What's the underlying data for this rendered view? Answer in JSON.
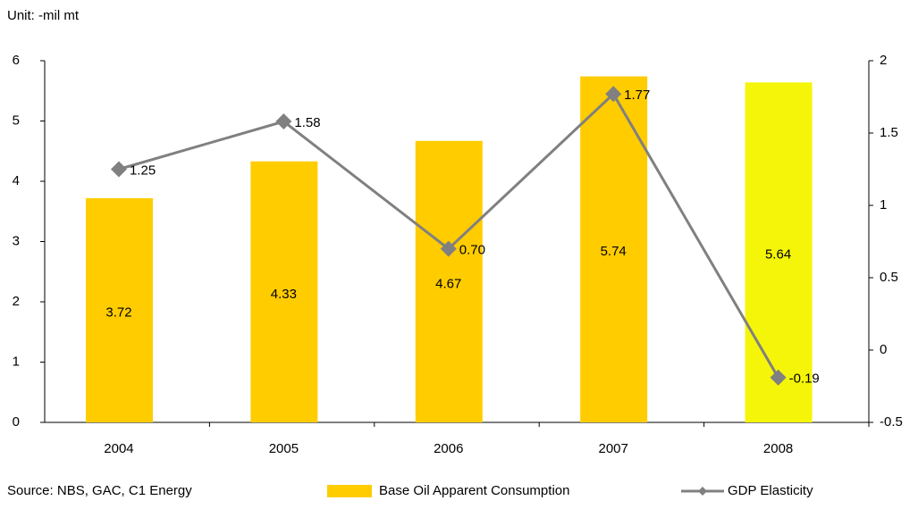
{
  "chart_data": {
    "type": "bar+line",
    "unit_label": "Unit: -mil mt",
    "source": "Source: NBS, GAC, C1 Energy",
    "categories": [
      "2004",
      "2005",
      "2006",
      "2007",
      "2008"
    ],
    "series": [
      {
        "name": "Base Oil Apparent Consumption",
        "type": "bar",
        "axis": "y",
        "color": "#ffcc00",
        "colors": [
          "#ffcc00",
          "#ffcc00",
          "#ffcc00",
          "#ffcc00",
          "#f5f50a"
        ],
        "values": [
          3.72,
          4.33,
          4.67,
          5.74,
          5.64
        ]
      },
      {
        "name": "GDP Elasticity",
        "type": "line",
        "axis": "y2",
        "color": "#808080",
        "values": [
          1.25,
          1.58,
          0.7,
          1.77,
          -0.19
        ],
        "value_labels": [
          "1.25",
          "1.58",
          "0.70",
          "1.77",
          "-0.19"
        ]
      }
    ],
    "ylim": [
      0,
      6
    ],
    "yticks": [
      0,
      1,
      2,
      3,
      4,
      5,
      6
    ],
    "y2lim": [
      -0.5,
      2
    ],
    "y2ticks": [
      -0.5,
      0,
      0.5,
      1,
      1.5,
      2
    ],
    "grid": false
  }
}
